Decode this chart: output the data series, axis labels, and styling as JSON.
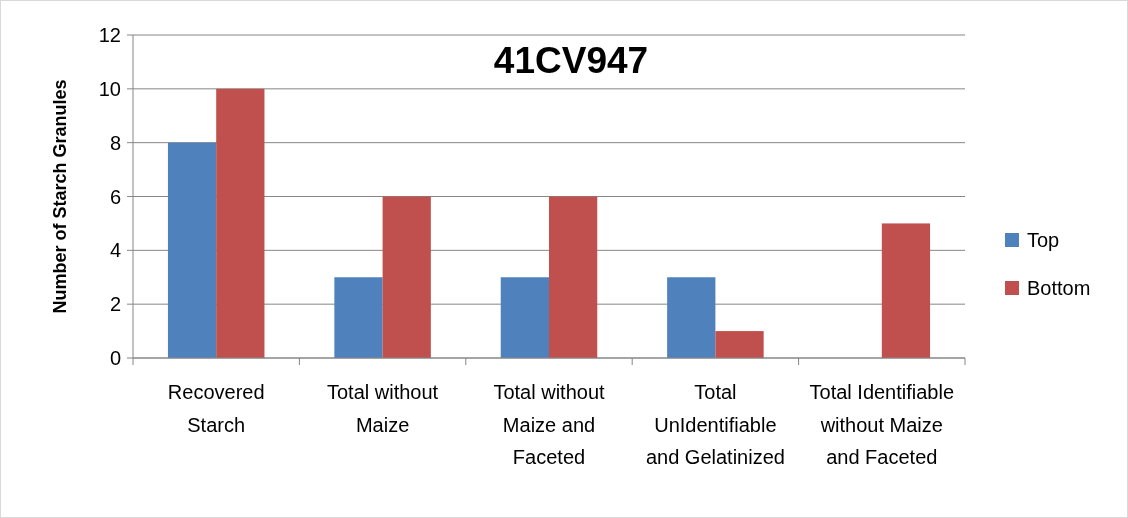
{
  "chart_data": {
    "type": "bar",
    "title": "41CV947",
    "ylabel": "Number of Starch Granules",
    "categories": [
      "Recovered Starch",
      "Total without Maize",
      "Total without Maize and Faceted",
      "Total UnIdentifiable and Gelatinized",
      "Total Identifiable without Maize and Faceted"
    ],
    "series": [
      {
        "name": "Top",
        "color": "#4f81bd",
        "values": [
          8,
          3,
          3,
          3,
          0
        ]
      },
      {
        "name": "Bottom",
        "color": "#c0504d",
        "values": [
          10,
          6,
          6,
          1,
          5
        ]
      }
    ],
    "ylim": [
      0,
      12
    ],
    "yticks": [
      0,
      2,
      4,
      6,
      8,
      10,
      12
    ],
    "grid": "y",
    "legend": "right"
  }
}
